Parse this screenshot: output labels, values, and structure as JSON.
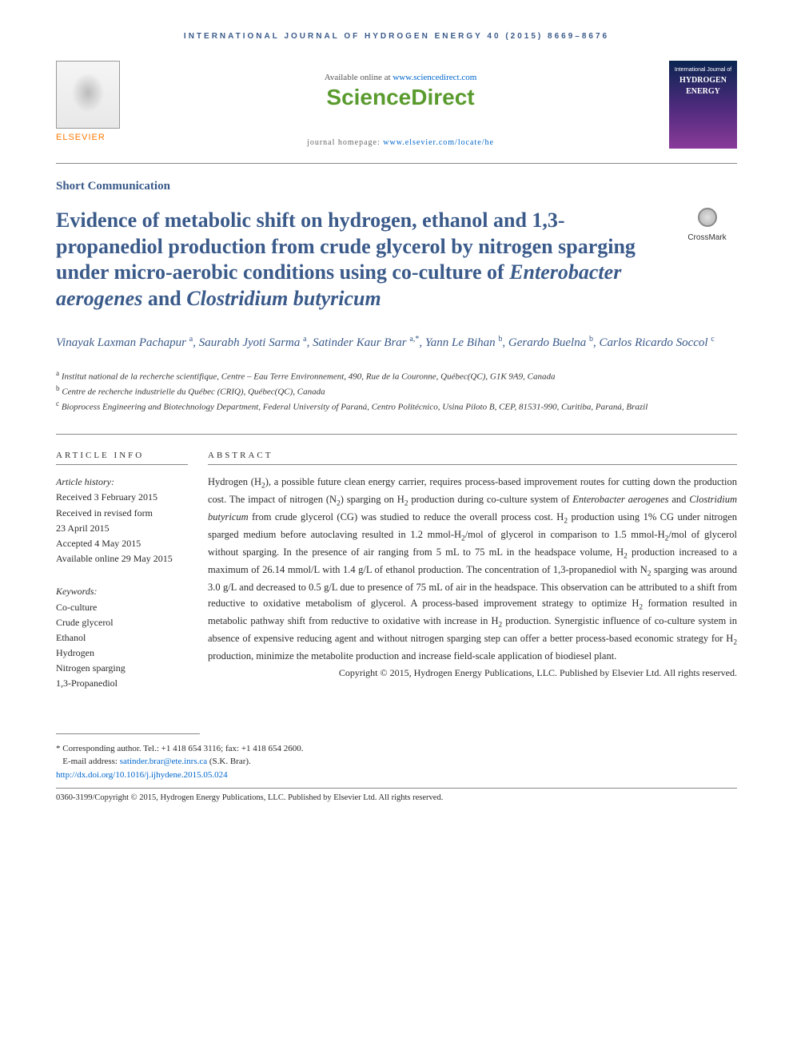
{
  "journal_header": "INTERNATIONAL JOURNAL OF HYDROGEN ENERGY 40 (2015) 8669–8676",
  "available_text": "Available online at ",
  "available_link": "www.sciencedirect.com",
  "sciencedirect": "ScienceDirect",
  "homepage_text": "journal homepage: ",
  "homepage_link": "www.elsevier.com/locate/he",
  "elsevier_label": "ELSEVIER",
  "cover": {
    "small": "International Journal of",
    "big1": "HYDROGEN",
    "big2": "ENERGY"
  },
  "article_type": "Short Communication",
  "title_parts": {
    "p1": "Evidence of metabolic shift on hydrogen, ethanol and 1,3-propanediol production from crude glycerol by nitrogen sparging under micro-aerobic conditions using co-culture of ",
    "em1": "Enterobacter aerogenes",
    "p2": " and ",
    "em2": "Clostridium butyricum"
  },
  "crossmark": "CrossMark",
  "authors": [
    {
      "name": "Vinayak Laxman Pachapur",
      "sup": "a"
    },
    {
      "name": "Saurabh Jyoti Sarma",
      "sup": "a"
    },
    {
      "name": "Satinder Kaur Brar",
      "sup": "a,*"
    },
    {
      "name": "Yann Le Bihan",
      "sup": "b"
    },
    {
      "name": "Gerardo Buelna",
      "sup": "b"
    },
    {
      "name": "Carlos Ricardo Soccol",
      "sup": "c"
    }
  ],
  "affiliations": [
    {
      "sup": "a",
      "text": "Institut national de la recherche scientifique, Centre – Eau Terre Environnement, 490, Rue de la Couronne, Québec(QC), G1K 9A9, Canada"
    },
    {
      "sup": "b",
      "text": "Centre de recherche industrielle du Québec (CRIQ), Québec(QC), Canada"
    },
    {
      "sup": "c",
      "text": "Bioprocess Engineering and Biotechnology Department, Federal University of Paraná, Centro Politécnico, Usina Piloto B, CEP, 81531-990, Curitiba, Paraná, Brazil"
    }
  ],
  "article_info_head": "ARTICLE INFO",
  "abstract_head": "ABSTRACT",
  "history_label": "Article history:",
  "history": [
    "Received 3 February 2015",
    "Received in revised form",
    "23 April 2015",
    "Accepted 4 May 2015",
    "Available online 29 May 2015"
  ],
  "keywords_label": "Keywords:",
  "keywords": [
    "Co-culture",
    "Crude glycerol",
    "Ethanol",
    "Hydrogen",
    "Nitrogen sparging",
    "1,3-Propanediol"
  ],
  "abstract": "Hydrogen (H₂), a possible future clean energy carrier, requires process-based improvement routes for cutting down the production cost. The impact of nitrogen (N₂) sparging on H₂ production during co-culture system of Enterobacter aerogenes and Clostridium butyricum from crude glycerol (CG) was studied to reduce the overall process cost. H₂ production using 1% CG under nitrogen sparged medium before autoclaving resulted in 1.2 mmol-H₂/mol of glycerol in comparison to 1.5 mmol-H₂/mol of glycerol without sparging. In the presence of air ranging from 5 mL to 75 mL in the headspace volume, H₂ production increased to a maximum of 26.14 mmol/L with 1.4 g/L of ethanol production. The concentration of 1,3-propanediol with N₂ sparging was around 3.0 g/L and decreased to 0.5 g/L due to presence of 75 mL of air in the headspace. This observation can be attributed to a shift from reductive to oxidative metabolism of glycerol. A process-based improvement strategy to optimize H₂ formation resulted in metabolic pathway shift from reductive to oxidative with increase in H₂ production. Synergistic influence of co-culture system in absence of expensive reducing agent and without nitrogen sparging step can offer a better process-based economic strategy for H₂ production, minimize the metabolite production and increase field-scale application of biodiesel plant.",
  "abstract_copyright": "Copyright © 2015, Hydrogen Energy Publications, LLC. Published by Elsevier Ltd. All rights reserved.",
  "footer": {
    "corresponding": "* Corresponding author. Tel.: +1 418 654 3116; fax: +1 418 654 2600.",
    "email_label": "E-mail address: ",
    "email": "satinder.brar@ete.inrs.ca",
    "email_suffix": " (S.K. Brar).",
    "doi": "http://dx.doi.org/10.1016/j.ijhydene.2015.05.024",
    "copyright": "0360-3199/Copyright © 2015, Hydrogen Energy Publications, LLC. Published by Elsevier Ltd. All rights reserved."
  }
}
